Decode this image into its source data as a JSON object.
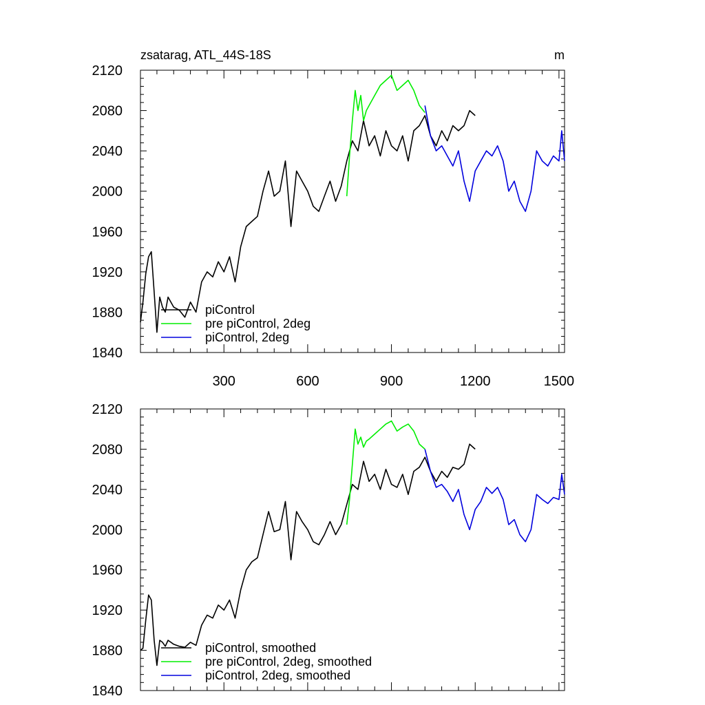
{
  "header": {
    "title": "zsatarag, ATL_44S-18S",
    "units": "m"
  },
  "colors": {
    "piControl": "#000000",
    "pre_piControl_2deg": "#00ee00",
    "piControl_2deg": "#0000dd"
  },
  "chart_data": [
    {
      "type": "line",
      "title": "zsatarag, ATL_44S-18S",
      "units": "m",
      "xlim": [
        1,
        1520
      ],
      "ylim": [
        1840,
        2120
      ],
      "x_ticks": [
        300,
        600,
        900,
        1200,
        1500
      ],
      "x_tick_labels": [
        "300",
        "600",
        "900",
        "1200",
        "1500"
      ],
      "y_ticks": [
        1840,
        1880,
        1920,
        1960,
        2000,
        2040,
        2080,
        2120
      ],
      "y_tick_labels": [
        "1840",
        "1880",
        "1920",
        "1960",
        "2000",
        "2040",
        "2080",
        "2120"
      ],
      "grid": false,
      "legend_position": "bottom-left",
      "series": [
        {
          "name": "piControl",
          "color": "#000000",
          "x": [
            1,
            10,
            20,
            30,
            40,
            50,
            60,
            70,
            80,
            90,
            100,
            120,
            140,
            160,
            180,
            200,
            220,
            240,
            260,
            280,
            300,
            320,
            340,
            360,
            380,
            400,
            420,
            440,
            460,
            480,
            500,
            520,
            540,
            560,
            580,
            600,
            620,
            640,
            660,
            680,
            700,
            720,
            740,
            760,
            780,
            800,
            820,
            840,
            860,
            880,
            900,
            920,
            940,
            960,
            980,
            1000,
            1020,
            1040,
            1060,
            1080,
            1100,
            1120,
            1140,
            1160,
            1180,
            1200
          ],
          "y": [
            1870,
            1890,
            1918,
            1935,
            1940,
            1900,
            1860,
            1895,
            1885,
            1880,
            1895,
            1885,
            1882,
            1875,
            1890,
            1880,
            1910,
            1920,
            1915,
            1930,
            1920,
            1935,
            1910,
            1945,
            1965,
            1970,
            1975,
            2000,
            2020,
            1995,
            2000,
            2030,
            1965,
            2020,
            2010,
            2000,
            1985,
            1980,
            1995,
            2010,
            1990,
            2005,
            2030,
            2050,
            2040,
            2070,
            2045,
            2055,
            2035,
            2060,
            2045,
            2040,
            2055,
            2030,
            2060,
            2065,
            2075,
            2055,
            2045,
            2060,
            2050,
            2065,
            2060,
            2065,
            2080,
            2075
          ]
        },
        {
          "name": "pre piControl, 2deg",
          "color": "#00ee00",
          "x": [
            740,
            750,
            760,
            770,
            780,
            790,
            800,
            810,
            820,
            840,
            860,
            880,
            900,
            920,
            940,
            960,
            980,
            1000,
            1020
          ],
          "y": [
            1995,
            2035,
            2070,
            2100,
            2080,
            2095,
            2070,
            2080,
            2085,
            2095,
            2105,
            2110,
            2115,
            2100,
            2105,
            2110,
            2100,
            2085,
            2078
          ]
        },
        {
          "name": "piControl, 2deg",
          "color": "#0000dd",
          "x": [
            1020,
            1040,
            1060,
            1080,
            1100,
            1120,
            1140,
            1160,
            1180,
            1200,
            1220,
            1240,
            1260,
            1280,
            1300,
            1320,
            1340,
            1360,
            1380,
            1400,
            1420,
            1440,
            1460,
            1480,
            1500,
            1510,
            1520
          ],
          "y": [
            2085,
            2055,
            2040,
            2045,
            2035,
            2025,
            2040,
            2010,
            1990,
            2020,
            2030,
            2040,
            2035,
            2045,
            2030,
            2000,
            2010,
            1990,
            1980,
            2000,
            2040,
            2030,
            2025,
            2035,
            2030,
            2060,
            2030
          ]
        }
      ]
    },
    {
      "type": "line",
      "xlim": [
        1,
        1520
      ],
      "ylim": [
        1840,
        2120
      ],
      "x_ticks": [
        300,
        600,
        900,
        1200,
        1500
      ],
      "y_ticks": [
        1840,
        1880,
        1920,
        1960,
        2000,
        2040,
        2080,
        2120
      ],
      "y_tick_labels": [
        "1840",
        "1880",
        "1920",
        "1960",
        "2000",
        "2040",
        "2080",
        "2120"
      ],
      "grid": false,
      "legend_position": "bottom-left",
      "series": [
        {
          "name": "piControl, smoothed",
          "color": "#000000",
          "x": [
            1,
            10,
            20,
            30,
            40,
            50,
            60,
            70,
            80,
            90,
            100,
            120,
            140,
            160,
            180,
            200,
            220,
            240,
            260,
            280,
            300,
            320,
            340,
            360,
            380,
            400,
            420,
            440,
            460,
            480,
            500,
            520,
            540,
            560,
            580,
            600,
            620,
            640,
            660,
            680,
            700,
            720,
            740,
            760,
            780,
            800,
            820,
            840,
            860,
            880,
            900,
            920,
            940,
            960,
            980,
            1000,
            1020,
            1040,
            1060,
            1080,
            1100,
            1120,
            1140,
            1160,
            1180,
            1200
          ],
          "y": [
            1880,
            1882,
            1910,
            1935,
            1930,
            1890,
            1865,
            1890,
            1888,
            1884,
            1890,
            1886,
            1884,
            1883,
            1888,
            1885,
            1905,
            1915,
            1912,
            1925,
            1920,
            1930,
            1912,
            1940,
            1960,
            1968,
            1972,
            1995,
            2018,
            1998,
            2000,
            2028,
            1970,
            2018,
            2008,
            2000,
            1988,
            1985,
            1995,
            2008,
            1995,
            2005,
            2025,
            2045,
            2040,
            2068,
            2048,
            2055,
            2040,
            2060,
            2045,
            2042,
            2055,
            2035,
            2058,
            2062,
            2072,
            2058,
            2048,
            2058,
            2052,
            2062,
            2060,
            2065,
            2085,
            2080
          ]
        },
        {
          "name": "pre piControl, 2deg, smoothed",
          "color": "#00ee00",
          "x": [
            740,
            750,
            760,
            770,
            780,
            790,
            800,
            810,
            820,
            840,
            860,
            880,
            900,
            920,
            940,
            960,
            980,
            1000,
            1020
          ],
          "y": [
            2005,
            2030,
            2065,
            2100,
            2085,
            2092,
            2082,
            2088,
            2090,
            2095,
            2100,
            2105,
            2108,
            2098,
            2102,
            2105,
            2098,
            2085,
            2080
          ]
        },
        {
          "name": "piControl, 2deg, smoothed",
          "color": "#0000dd",
          "x": [
            1020,
            1040,
            1060,
            1080,
            1100,
            1120,
            1140,
            1160,
            1180,
            1200,
            1220,
            1240,
            1260,
            1280,
            1300,
            1320,
            1340,
            1360,
            1380,
            1400,
            1420,
            1440,
            1460,
            1480,
            1500,
            1510,
            1520
          ],
          "y": [
            2080,
            2058,
            2042,
            2045,
            2038,
            2028,
            2040,
            2015,
            2000,
            2020,
            2028,
            2042,
            2036,
            2042,
            2030,
            2005,
            2010,
            1995,
            1988,
            2000,
            2035,
            2030,
            2026,
            2032,
            2030,
            2055,
            2035
          ]
        }
      ]
    }
  ]
}
